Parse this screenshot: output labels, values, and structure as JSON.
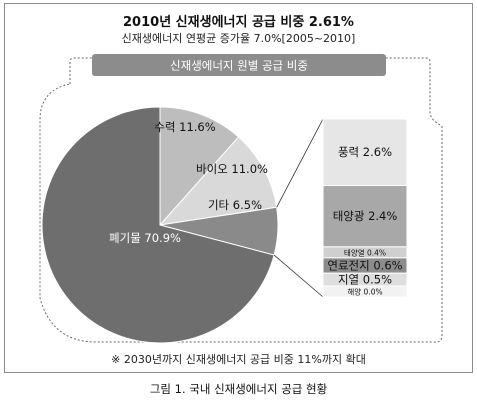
{
  "chart_data": {
    "type": "pie",
    "title": "2010년 신재생에너지 공급 비중 2.61%",
    "subtitle": "신재생에너지 연평균 증가율 7.0%[2005~2010]",
    "banner": "신재생에너지 원별 공급 비중",
    "slices": [
      {
        "label": "폐기물 70.9%",
        "name": "폐기물",
        "value": 70.9,
        "color": "#6e6e6e"
      },
      {
        "label": "수력 11.6%",
        "name": "수력",
        "value": 11.6,
        "color": "#bdbdbd"
      },
      {
        "label": "바이오 11.0%",
        "name": "바이오",
        "value": 11.0,
        "color": "#d9d9d9"
      },
      {
        "label": "기타 6.5%",
        "name": "기타",
        "value": 6.5,
        "color": "#8a8a8a"
      }
    ],
    "breakdown": {
      "parent": "기타",
      "items": [
        {
          "label": "풍력 2.6%",
          "name": "풍력",
          "value": 2.6,
          "color": "#e6e6e6"
        },
        {
          "label": "태양광 2.4%",
          "name": "태양광",
          "value": 2.4,
          "color": "#a8a8a8"
        },
        {
          "label": "태양열 0.4%",
          "name": "태양열",
          "value": 0.4,
          "color": "#cfcfcf"
        },
        {
          "label": "연료전지 0.6%",
          "name": "연료전지",
          "value": 0.6,
          "color": "#8c8c8c"
        },
        {
          "label": "지열 0.5%",
          "name": "지열",
          "value": 0.5,
          "color": "#dedede"
        },
        {
          "label": "해양 0.0%",
          "name": "해양",
          "value": 0.0,
          "color": "#f2f2f2"
        }
      ]
    },
    "footnote": "※ 2030년까지 신재생에너지 공급 비중 11%까지 확대",
    "caption": "그림 1. 국내 신재생에너지 공급 현황"
  }
}
